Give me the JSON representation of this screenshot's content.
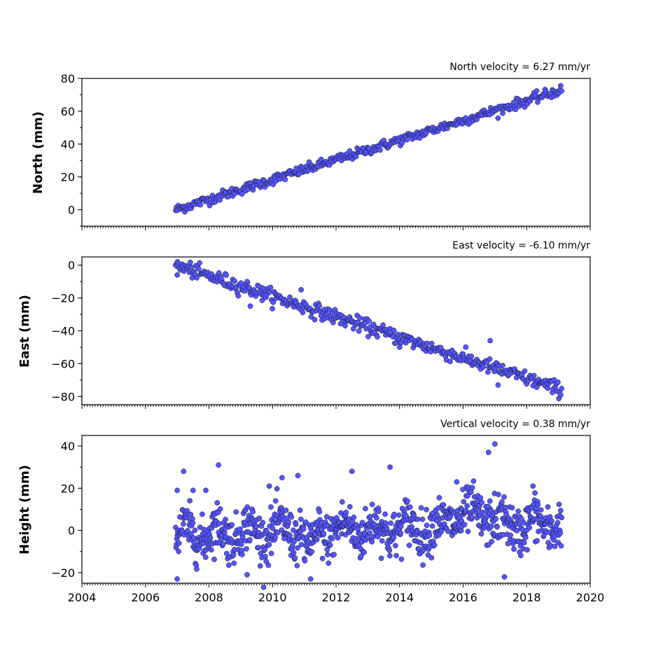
{
  "chart_data": [
    {
      "type": "scatter",
      "title": "North velocity = 6.27 mm/yr",
      "ylabel": "North (mm)",
      "xlabel": "",
      "xlim": [
        2004,
        2020
      ],
      "ylim": [
        -10,
        80
      ],
      "yticks": [
        0,
        20,
        40,
        60,
        80
      ],
      "ytick_labels": [
        "0",
        "20",
        "40",
        "60",
        "80"
      ],
      "xtick_labels": [],
      "grid": false,
      "series": [
        {
          "color": "#5555ff",
          "t_start": 2006.95,
          "t_end": 2019.1,
          "start_value": 0,
          "end_value": 73,
          "scatter": 1.5,
          "samples": 420
        }
      ]
    },
    {
      "type": "scatter",
      "title": "East velocity = -6.10 mm/yr",
      "ylabel": "East (mm)",
      "xlabel": "",
      "xlim": [
        2004,
        2020
      ],
      "ylim": [
        -85,
        5
      ],
      "yticks": [
        0,
        -20,
        -40,
        -60,
        -80
      ],
      "ytick_labels": [
        "0",
        "−20",
        "−40",
        "−60",
        "−80"
      ],
      "xtick_labels": [],
      "grid": false,
      "series": [
        {
          "color": "#5555ff",
          "t_start": 2006.95,
          "t_end": 2019.1,
          "start_value": 0,
          "end_value": -76,
          "scatter": 2.2,
          "samples": 420,
          "outliers": [
            [
              2007.0,
              -6
            ],
            [
              2009.2,
              -10
            ],
            [
              2009.3,
              -25
            ],
            [
              2009.7,
              -14
            ],
            [
              2010.9,
              -15
            ],
            [
              2013.7,
              -41
            ],
            [
              2014.0,
              -50
            ],
            [
              2016.85,
              -46
            ],
            [
              2017.1,
              -73
            ]
          ]
        }
      ]
    },
    {
      "type": "scatter",
      "title": "Vertical velocity = 0.38 mm/yr",
      "ylabel": "Height (mm)",
      "xlabel": "",
      "xlim": [
        2004,
        2020
      ],
      "ylim": [
        -25,
        45
      ],
      "yticks": [
        -20,
        0,
        20,
        40
      ],
      "ytick_labels": [
        "−20",
        "0",
        "20",
        "40"
      ],
      "xticks": [
        2004,
        2006,
        2008,
        2010,
        2012,
        2014,
        2016,
        2018,
        2020
      ],
      "xtick_labels": [
        "2004",
        "2006",
        "2008",
        "2010",
        "2012",
        "2014",
        "2016",
        "2018",
        "2020"
      ],
      "grid": false,
      "series": [
        {
          "color": "#5555ff",
          "t_start": 2006.95,
          "t_end": 2019.1,
          "start_value": -2,
          "end_value": 3,
          "scatter": 5.5,
          "samples": 900,
          "outliers": [
            [
              2007.0,
              19
            ],
            [
              2007.2,
              28
            ],
            [
              2007.5,
              19
            ],
            [
              2007.9,
              19
            ],
            [
              2008.3,
              31
            ],
            [
              2009.2,
              -21
            ],
            [
              2009.9,
              21
            ],
            [
              2010.3,
              25
            ],
            [
              2010.8,
              26
            ],
            [
              2011.2,
              -23
            ],
            [
              2012.5,
              28
            ],
            [
              2013.7,
              30
            ],
            [
              2015.8,
              23
            ],
            [
              2016.8,
              37
            ],
            [
              2017.0,
              41
            ],
            [
              2017.3,
              -22
            ],
            [
              2018.2,
              21
            ],
            [
              2007.0,
              -23
            ]
          ]
        }
      ]
    }
  ]
}
